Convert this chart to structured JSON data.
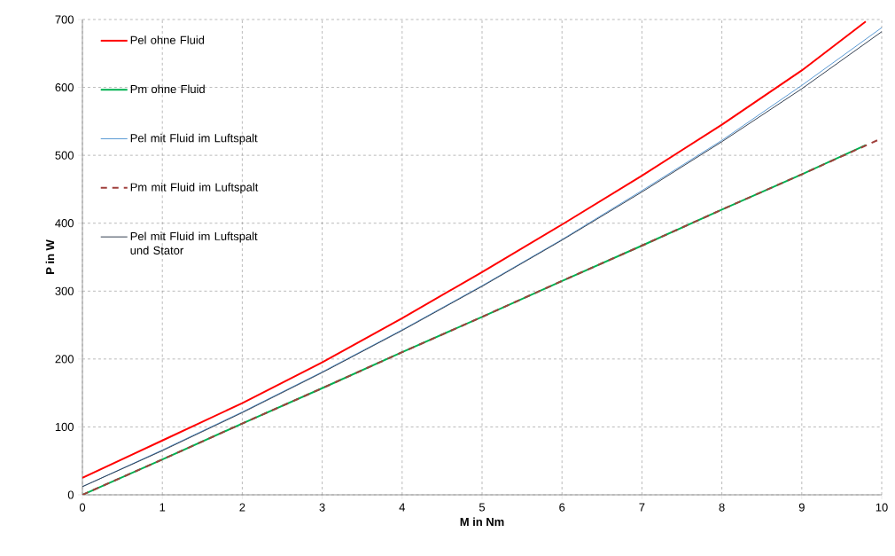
{
  "chart_data": {
    "type": "line",
    "xlabel": "M in Nm",
    "ylabel": "P in W",
    "xlim": [
      0,
      10
    ],
    "ylim": [
      0,
      700
    ],
    "xticks": [
      0,
      1,
      2,
      3,
      4,
      5,
      6,
      7,
      8,
      9,
      10
    ],
    "yticks": [
      0,
      100,
      200,
      300,
      400,
      500,
      600,
      700
    ],
    "grid": true,
    "legend": "top left",
    "series": [
      {
        "name": "Pel ohne Fluid",
        "color": "#ff0000",
        "x": [
          0,
          1,
          2,
          3,
          4,
          5,
          6,
          7,
          8,
          9,
          9.8
        ],
        "values": [
          25,
          80,
          135,
          195,
          260,
          328,
          398,
          470,
          545,
          625,
          697
        ]
      },
      {
        "name": "Pm ohne Fluid",
        "color": "#00b050",
        "x": [
          0,
          1,
          2,
          3,
          4,
          5,
          6,
          7,
          8,
          9,
          9.8
        ],
        "values": [
          0,
          52,
          105,
          157,
          210,
          262,
          315,
          367,
          420,
          472,
          515
        ]
      },
      {
        "name": "Pel mit Fluid im Luftspalt",
        "color": "#5b9bd5",
        "x": [
          0,
          1,
          2,
          3,
          4,
          5,
          6,
          7,
          8,
          9,
          10
        ],
        "values": [
          12,
          66,
          122,
          181,
          243,
          308,
          376,
          448,
          522,
          603,
          688
        ]
      },
      {
        "name": "Pm mit Fluid im Luftspalt",
        "color": "#a0403c",
        "line_style": "dashed",
        "x": [
          0,
          1,
          2,
          3,
          4,
          5,
          6,
          7,
          8,
          9,
          10
        ],
        "values": [
          0,
          52,
          105,
          157,
          210,
          262,
          315,
          367,
          420,
          472,
          525
        ]
      },
      {
        "name": "Pel mit Fluid im Luftspalt und Stator",
        "color": "#333f50",
        "x": [
          0,
          1,
          2,
          3,
          4,
          5,
          6,
          7,
          8,
          9,
          10
        ],
        "values": [
          12,
          65,
          121,
          180,
          242,
          307,
          375,
          446,
          520,
          598,
          682
        ]
      }
    ]
  }
}
